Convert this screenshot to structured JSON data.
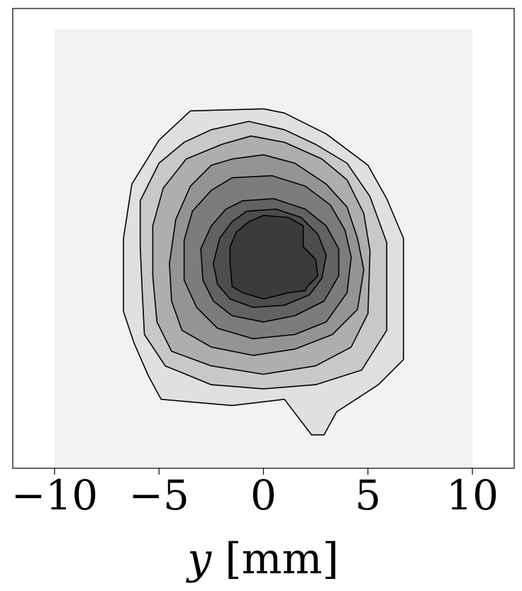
{
  "chart_data": {
    "type": "contourf",
    "xlabel": "y [mm]",
    "x_ticks": [
      {
        "value": -10,
        "label": "−10"
      },
      {
        "value": -5,
        "label": "−5"
      },
      {
        "value": 0,
        "label": "0"
      },
      {
        "value": 5,
        "label": "5"
      },
      {
        "value": 10,
        "label": "10"
      }
    ],
    "xlim": [
      -12,
      12
    ],
    "ylim": [
      -10,
      12
    ],
    "grid": false,
    "y_ticks_shown": false,
    "colormap": "Greys",
    "field_extent": {
      "x": [
        -10,
        10
      ],
      "y": [
        -10,
        11
      ]
    },
    "background_fill": "#f2f2f2",
    "levels": [
      {
        "fill": "#e0e0e0",
        "contour": [
          [
            -3.5,
            7.1
          ],
          [
            0,
            7.2
          ],
          [
            1,
            7.0
          ],
          [
            3,
            6.0
          ],
          [
            5,
            4.5
          ],
          [
            5.9,
            2.9
          ],
          [
            6.7,
            1.0
          ],
          [
            6.7,
            -4.8
          ],
          [
            5.5,
            -6.0
          ],
          [
            3.5,
            -7.3
          ],
          [
            2.9,
            -8.4
          ],
          [
            2.3,
            -8.4
          ],
          [
            1,
            -6.7
          ],
          [
            -1.5,
            -7.0
          ],
          [
            -4.9,
            -6.7
          ],
          [
            -5.5,
            -5.6
          ],
          [
            -6.2,
            -4.0
          ],
          [
            -6.7,
            -2.5
          ],
          [
            -6.7,
            1.0
          ],
          [
            -6.3,
            3.6
          ],
          [
            -5.0,
            5.7
          ]
        ]
      },
      {
        "fill": "#c8c8c8",
        "contour": [
          [
            -2.5,
            6.2
          ],
          [
            -0.7,
            6.6
          ],
          [
            1,
            6.2
          ],
          [
            2.5,
            5.5
          ],
          [
            4,
            4.6
          ],
          [
            5.1,
            3.0
          ],
          [
            5.9,
            0.8
          ],
          [
            5.9,
            -3.4
          ],
          [
            4.7,
            -5.3
          ],
          [
            2.5,
            -6.0
          ],
          [
            0,
            -6.2
          ],
          [
            -2.5,
            -6.0
          ],
          [
            -4.7,
            -5.1
          ],
          [
            -5.7,
            -3.6
          ],
          [
            -5.8,
            -1.6
          ],
          [
            -5.9,
            0.6
          ],
          [
            -5.9,
            2.8
          ],
          [
            -5.0,
            4.6
          ],
          [
            -3.8,
            5.6
          ]
        ]
      },
      {
        "fill": "#aeaeae",
        "contour": [
          [
            -2.0,
            5.5
          ],
          [
            -0.6,
            5.9
          ],
          [
            1,
            5.6
          ],
          [
            2.8,
            4.8
          ],
          [
            4.0,
            3.8
          ],
          [
            4.8,
            2.2
          ],
          [
            5.1,
            0.4
          ],
          [
            5.0,
            -2.6
          ],
          [
            4.2,
            -4.2
          ],
          [
            2.5,
            -5.1
          ],
          [
            0,
            -5.5
          ],
          [
            -2.5,
            -5.1
          ],
          [
            -4.4,
            -4.4
          ],
          [
            -5.1,
            -3.0
          ],
          [
            -5.3,
            -0.8
          ],
          [
            -5.3,
            1.6
          ],
          [
            -4.8,
            3.4
          ],
          [
            -3.7,
            4.8
          ]
        ]
      },
      {
        "fill": "#949494",
        "contour": [
          [
            -1.5,
            4.8
          ],
          [
            0,
            5.0
          ],
          [
            1.5,
            4.6
          ],
          [
            3.0,
            3.6
          ],
          [
            4.0,
            2.5
          ],
          [
            4.5,
            1.0
          ],
          [
            4.8,
            -0.5
          ],
          [
            4.5,
            -2.4
          ],
          [
            3.3,
            -3.6
          ],
          [
            1.5,
            -4.3
          ],
          [
            -0.5,
            -4.6
          ],
          [
            -2.5,
            -4.2
          ],
          [
            -3.9,
            -3.4
          ],
          [
            -4.4,
            -2.0
          ],
          [
            -4.5,
            -0.2
          ],
          [
            -4.2,
            1.9
          ],
          [
            -3.5,
            3.5
          ],
          [
            -2.5,
            4.5
          ]
        ]
      },
      {
        "fill": "#7c7c7c",
        "contour": [
          [
            -1.5,
            3.9
          ],
          [
            0.4,
            4.0
          ],
          [
            2,
            3.5
          ],
          [
            3.2,
            2.6
          ],
          [
            3.9,
            1.4
          ],
          [
            4.2,
            0.1
          ],
          [
            4.0,
            -1.6
          ],
          [
            3.0,
            -3.0
          ],
          [
            1.5,
            -3.6
          ],
          [
            -0.5,
            -3.8
          ],
          [
            -2.2,
            -3.3
          ],
          [
            -3.2,
            -2.3
          ],
          [
            -3.8,
            -1.0
          ],
          [
            -3.8,
            0.9
          ],
          [
            -3.4,
            2.3
          ],
          [
            -2.5,
            3.3
          ]
        ]
      },
      {
        "fill": "#626262",
        "contour": [
          [
            -1.0,
            2.8
          ],
          [
            0.5,
            2.9
          ],
          [
            2.0,
            2.4
          ],
          [
            3.0,
            1.6
          ],
          [
            3.6,
            0.5
          ],
          [
            3.6,
            -0.8
          ],
          [
            2.9,
            -2.0
          ],
          [
            1.5,
            -2.7
          ],
          [
            0,
            -3.0
          ],
          [
            -1.5,
            -2.7
          ],
          [
            -2.4,
            -2.0
          ],
          [
            -2.9,
            -1.0
          ],
          [
            -3.0,
            0.5
          ],
          [
            -2.5,
            1.6
          ],
          [
            -1.8,
            2.4
          ]
        ]
      },
      {
        "fill": "#4d4d4d",
        "contour": [
          [
            -0.8,
            2.3
          ],
          [
            0.6,
            2.4
          ],
          [
            1.8,
            2.0
          ],
          [
            2.6,
            1.2
          ],
          [
            3.0,
            0.2
          ],
          [
            2.8,
            -0.9
          ],
          [
            2.2,
            -1.7
          ],
          [
            1.0,
            -2.2
          ],
          [
            -0.5,
            -2.3
          ],
          [
            -1.6,
            -1.9
          ],
          [
            -2.2,
            -1.2
          ],
          [
            -2.4,
            -0.2
          ],
          [
            -2.1,
            1.0
          ],
          [
            -1.5,
            1.8
          ]
        ]
      },
      {
        "fill": "#3b3b3b",
        "contour": [
          [
            -0.7,
            1.8
          ],
          [
            0,
            2.1
          ],
          [
            1.2,
            2.0
          ],
          [
            1.9,
            1.6
          ],
          [
            1.9,
            0.6
          ],
          [
            2.5,
            0
          ],
          [
            2.6,
            -0.8
          ],
          [
            2.1,
            -1.3
          ],
          [
            2.0,
            -1.5
          ],
          [
            1.2,
            -1.6
          ],
          [
            0,
            -1.9
          ],
          [
            -1.0,
            -1.6
          ],
          [
            -1.5,
            -1.3
          ],
          [
            -1.6,
            -0.2
          ],
          [
            -1.6,
            0.6
          ],
          [
            -1.3,
            1.3
          ]
        ]
      }
    ]
  }
}
